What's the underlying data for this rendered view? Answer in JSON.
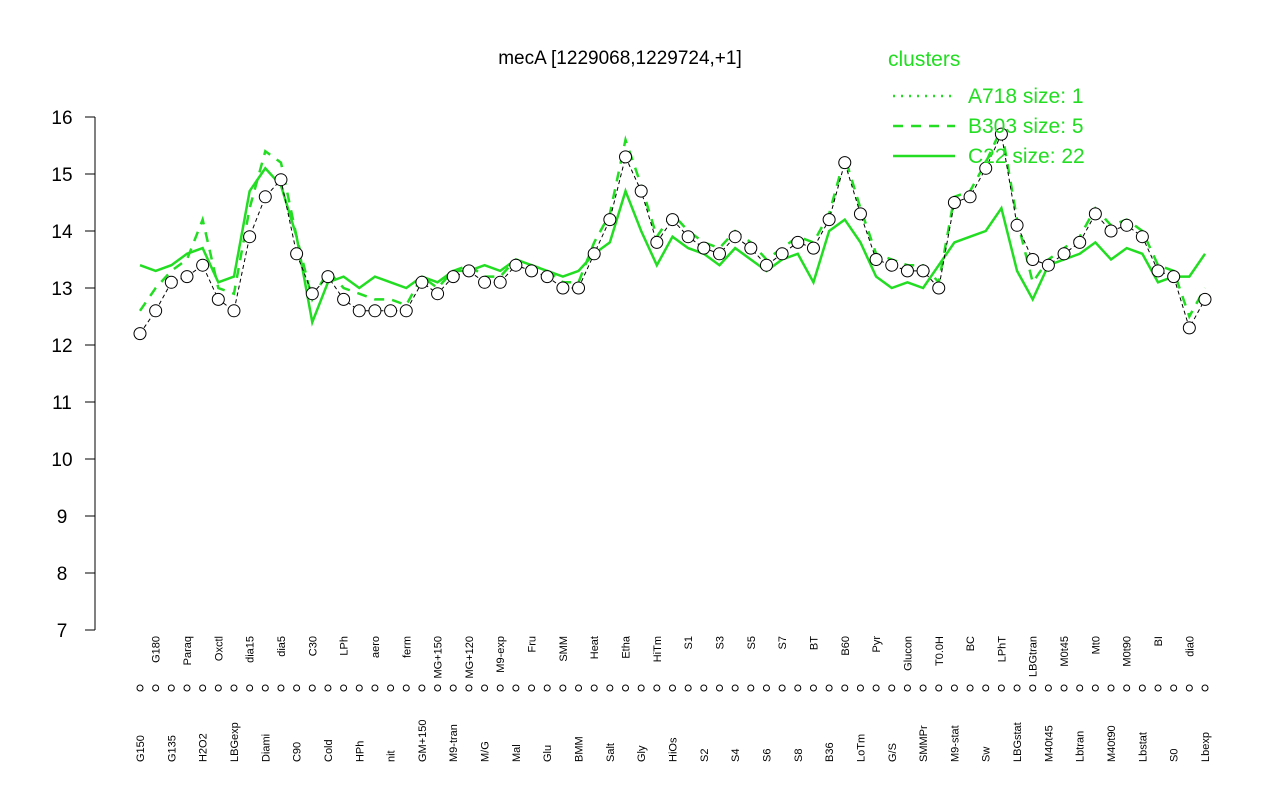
{
  "chart_data": {
    "type": "line",
    "title": "mecA [1229068,1229724,+1]",
    "categories": [
      "G150",
      "G180",
      "G135",
      "Paraq",
      "H2O2",
      "Oxctl",
      "LBGexp",
      "dia15",
      "Diami",
      "dia5",
      "C90",
      "C30",
      "Cold",
      "LPh",
      "HPh",
      "aero",
      "nit",
      "ferm",
      "GM+150",
      "MG+150",
      "M9-tran",
      "MG+120",
      "M/G",
      "M9-exp",
      "Mal",
      "Fru",
      "Glu",
      "SMM",
      "BMM",
      "Heat",
      "Salt",
      "Etha",
      "Gly",
      "HiTm",
      "HiOs",
      "S1",
      "S2",
      "S3",
      "S4",
      "S5",
      "S6",
      "S7",
      "S8",
      "BT",
      "B36",
      "B60",
      "LoTm",
      "Pyr",
      "G/S",
      "Glucon",
      "SMMPr",
      "T0.0H",
      "M9-stat",
      "BC",
      "Sw",
      "LPhT",
      "LBGstat",
      "LBGtran",
      "M40t45",
      "M0t45",
      "Lbtran",
      "Mt0",
      "M40t90",
      "M0t90",
      "Lbstat",
      "BI",
      "S0",
      "dia0",
      "Lbexp"
    ],
    "values": [
      12.2,
      12.6,
      13.1,
      13.2,
      13.4,
      12.8,
      12.6,
      13.9,
      14.6,
      14.9,
      13.6,
      12.9,
      13.2,
      12.8,
      12.6,
      12.6,
      12.6,
      12.6,
      13.1,
      12.9,
      13.2,
      13.3,
      13.1,
      13.1,
      13.4,
      13.3,
      13.2,
      13.0,
      13.0,
      13.6,
      14.2,
      15.3,
      14.7,
      13.8,
      14.2,
      13.9,
      13.7,
      13.6,
      13.9,
      13.7,
      13.4,
      13.6,
      13.8,
      13.7,
      14.2,
      15.2,
      14.3,
      13.5,
      13.4,
      13.3,
      13.3,
      13.0,
      14.5,
      14.6,
      15.1,
      15.7,
      14.1,
      13.5,
      13.4,
      13.6,
      13.8,
      14.3,
      14.0,
      14.1,
      13.9,
      13.3,
      13.2,
      12.3,
      12.8
    ],
    "point_color": "#ffffff",
    "series": [
      {
        "name": "A718 size: 1",
        "color": "#22dd22",
        "style": "dotted",
        "values": [
          null,
          null,
          null,
          null,
          null,
          null,
          null,
          null,
          null,
          null,
          null,
          null,
          null,
          null,
          null,
          null,
          null,
          null,
          null,
          null,
          null,
          null,
          null,
          null,
          null,
          null,
          null,
          null,
          null,
          null,
          null,
          null,
          null,
          null,
          null,
          null,
          null,
          null,
          null,
          null,
          null,
          null,
          null,
          null,
          null,
          null,
          null,
          null,
          null,
          null,
          null,
          null,
          null,
          null,
          null,
          null,
          null,
          null,
          null,
          null,
          null,
          null,
          null,
          null,
          null,
          null,
          null,
          null,
          null
        ]
      },
      {
        "name": "B303 size: 5",
        "color": "#22dd22",
        "style": "dashed",
        "values": [
          12.6,
          13.0,
          13.3,
          13.5,
          14.2,
          13.0,
          12.9,
          14.4,
          15.4,
          15.2,
          13.9,
          12.8,
          13.3,
          13.0,
          12.9,
          12.8,
          12.8,
          12.7,
          13.2,
          13.0,
          13.3,
          13.4,
          13.2,
          13.2,
          13.5,
          13.4,
          13.3,
          13.1,
          13.1,
          13.8,
          14.3,
          15.6,
          14.8,
          13.9,
          14.3,
          14.0,
          13.8,
          13.7,
          14.0,
          13.8,
          13.5,
          13.7,
          13.9,
          13.8,
          14.3,
          15.3,
          14.4,
          13.6,
          13.5,
          13.4,
          13.4,
          13.1,
          14.6,
          14.7,
          15.2,
          15.8,
          14.2,
          13.1,
          13.5,
          13.7,
          13.9,
          14.4,
          14.1,
          14.2,
          14.0,
          13.4,
          13.3,
          12.5,
          13.0
        ]
      },
      {
        "name": "C22 size: 22",
        "color": "#22dd22",
        "style": "solid",
        "values": [
          13.4,
          13.3,
          13.4,
          13.6,
          13.7,
          13.1,
          13.2,
          14.7,
          15.1,
          14.8,
          13.9,
          12.4,
          13.1,
          13.2,
          13.0,
          13.2,
          13.1,
          13.0,
          13.2,
          13.1,
          13.3,
          13.3,
          13.4,
          13.3,
          13.5,
          13.4,
          13.3,
          13.2,
          13.3,
          13.6,
          13.8,
          14.7,
          14.0,
          13.4,
          13.9,
          13.7,
          13.6,
          13.4,
          13.7,
          13.5,
          13.3,
          13.5,
          13.6,
          13.1,
          14.0,
          14.2,
          13.8,
          13.2,
          13.0,
          13.1,
          13.0,
          13.4,
          13.8,
          13.9,
          14.0,
          14.4,
          13.3,
          12.8,
          13.4,
          13.5,
          13.6,
          13.8,
          13.5,
          13.7,
          13.6,
          13.1,
          13.2,
          13.2,
          13.6
        ]
      }
    ],
    "legend_title": "clusters",
    "legend_position": "top-right",
    "ylim": [
      7,
      16
    ],
    "yticks": [
      7,
      8,
      9,
      10,
      11,
      12,
      13,
      14,
      15,
      16
    ]
  }
}
